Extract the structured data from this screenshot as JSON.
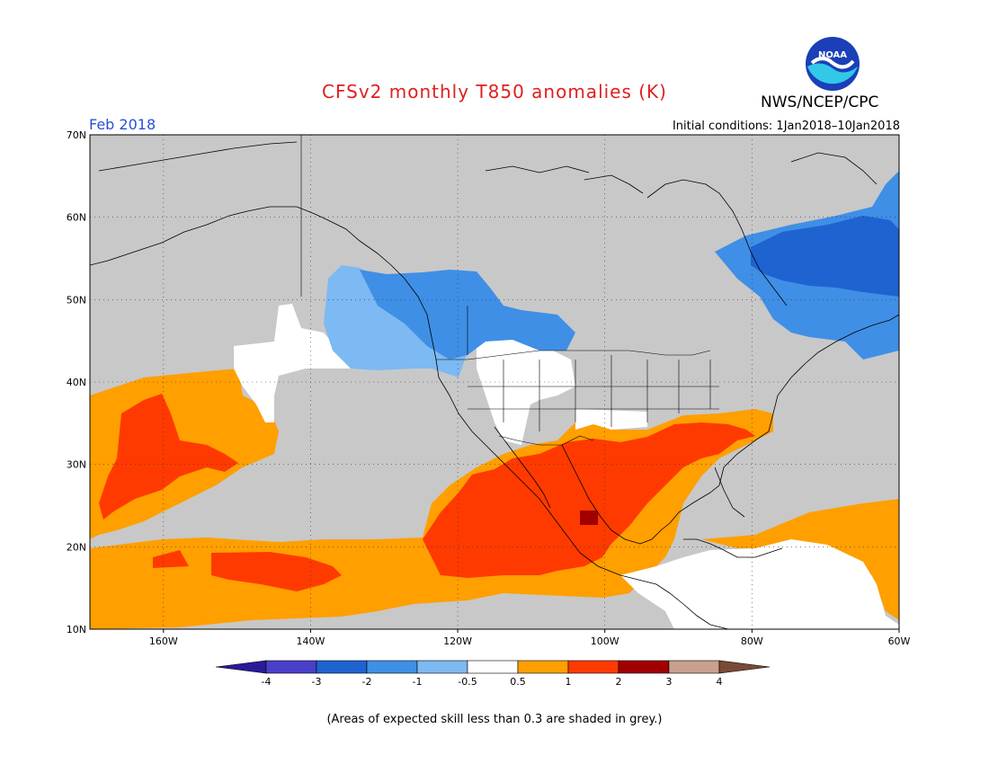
{
  "title": "CFSv2 monthly T850 anomalies (K)",
  "agency": "NWS/NCEP/CPC",
  "logo_text": "NOAA",
  "month": "Feb 2018",
  "initial_conditions": "Initial conditions: 1Jan2018–10Jan2018",
  "footnote": "(Areas of expected skill less than 0.3 are shaded in grey.)",
  "axes": {
    "lon_ticks": [
      "160W",
      "140W",
      "120W",
      "100W",
      "80W",
      "60W"
    ],
    "lat_ticks": [
      "70N",
      "60N",
      "50N",
      "40N",
      "30N",
      "20N",
      "10N"
    ]
  },
  "colorbar": {
    "labels": [
      "-4",
      "-3",
      "-2",
      "-1",
      "-0.5",
      "0.5",
      "1",
      "2",
      "3",
      "4"
    ],
    "colors": [
      "#2a1a9a",
      "#4a3fc8",
      "#1f63d1",
      "#3f8fe6",
      "#7db9f2",
      "#ffffff",
      "#ff9f00",
      "#ff3a00",
      "#a00000",
      "#c9a08e",
      "#7a4a38"
    ]
  },
  "colors": {
    "grey_low_skill": "#c8c8c8",
    "light_blue": "#7db9f2",
    "blue": "#3f8fe6",
    "dark_blue": "#1f63d1",
    "orange": "#ff9f00",
    "red": "#ff3a00",
    "dark_red": "#a00000",
    "neutral": "#ffffff"
  }
}
